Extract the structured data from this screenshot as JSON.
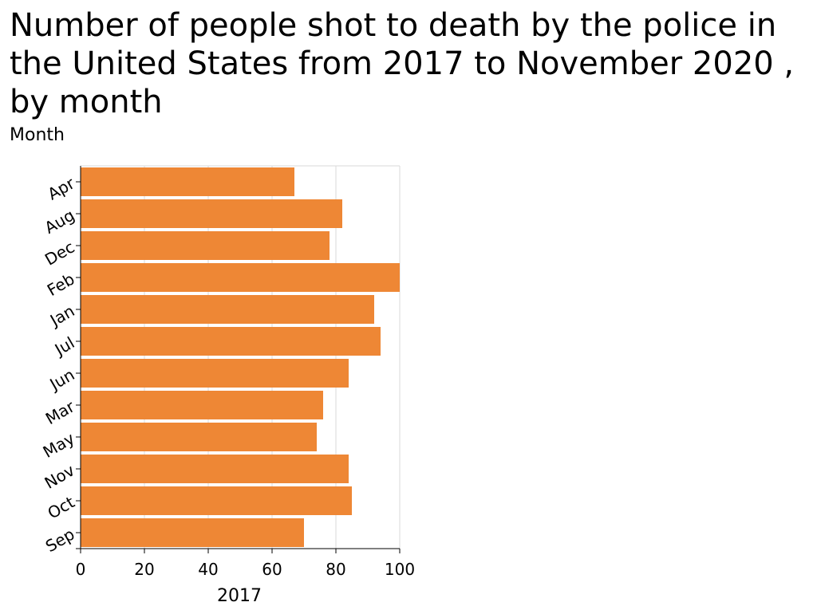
{
  "chart_data": {
    "type": "bar",
    "orientation": "horizontal",
    "title": "Number of people shot to death by the police in the United States from 2017 to November 2020 , by month",
    "ylabel": "Month",
    "xlabel": "2017",
    "categories": [
      "Apr",
      "Aug",
      "Dec",
      "Feb",
      "Jan",
      "Jul",
      "Jun",
      "Mar",
      "May",
      "Nov",
      "Oct",
      "Sep"
    ],
    "values": [
      67,
      82,
      78,
      100,
      92,
      94,
      84,
      76,
      74,
      84,
      85,
      70
    ],
    "xlim": [
      0,
      100
    ],
    "xticks": [
      "0",
      "20",
      "40",
      "60",
      "80",
      "100"
    ],
    "grid": "vertical",
    "colors": {
      "bar": "#ee8735",
      "grid": "#d9d9d9",
      "axis": "#000000"
    }
  }
}
